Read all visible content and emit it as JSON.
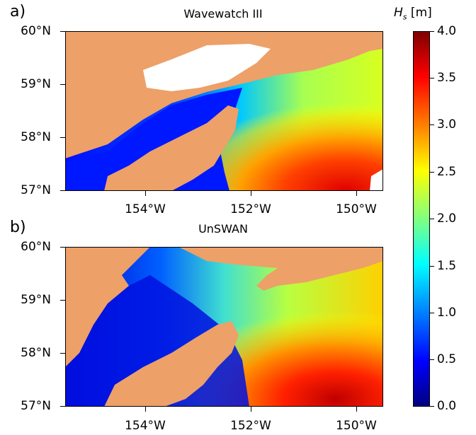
{
  "colorbar": {
    "label": "H",
    "label_sub": "s",
    "label_unit": " [m]",
    "ticks": [
      "4.0",
      "3.5",
      "3.0",
      "2.5",
      "2.0",
      "1.5",
      "1.0",
      "0.5",
      "0.0"
    ],
    "colormap": "jet"
  },
  "panels": [
    {
      "letter": "a)",
      "title": "Wavewatch III",
      "y_ticks": [
        "60°N",
        "59°N",
        "58°N",
        "57°N"
      ],
      "x_ticks": [
        "154°W",
        "152°W",
        "150°W"
      ]
    },
    {
      "letter": "b)",
      "title": "UnSWAN",
      "y_ticks": [
        "60°N",
        "59°N",
        "58°N",
        "57°N"
      ],
      "x_ticks": [
        "154°W",
        "152°W",
        "150°W"
      ]
    }
  ],
  "colors": {
    "land": "#eda068",
    "water_low": "#00008f",
    "water_high": "#c40000"
  }
}
